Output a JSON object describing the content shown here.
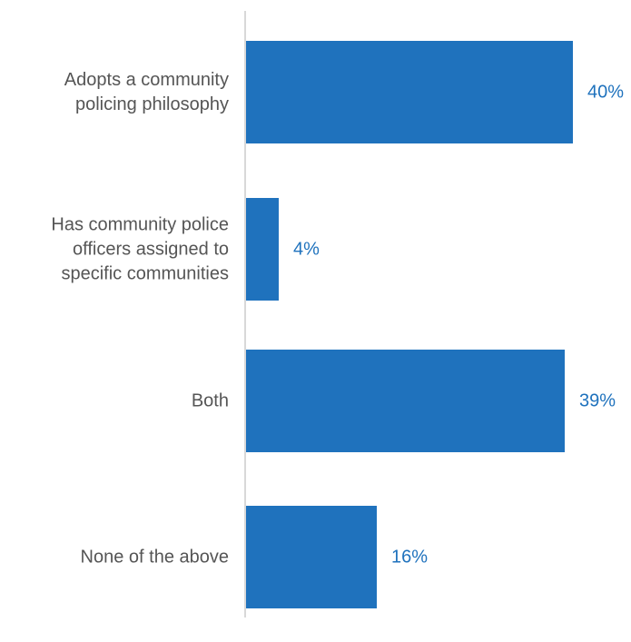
{
  "chart_data": {
    "type": "bar",
    "orientation": "horizontal",
    "categories": [
      "Adopts a community policing philosophy",
      "Has community police officers assigned to specific communities",
      "Both",
      "None of the above"
    ],
    "category_lines": [
      [
        "Adopts a community",
        "policing philosophy"
      ],
      [
        "Has community police",
        "officers assigned to",
        "specific communities"
      ],
      [
        "Both"
      ],
      [
        "None of the above"
      ]
    ],
    "values": [
      40,
      4,
      39,
      16
    ],
    "value_labels": [
      "40%",
      "4%",
      "39%",
      "16%"
    ],
    "unit": "%",
    "xlim": [
      0,
      40
    ],
    "grid": false,
    "legend": "none",
    "colors": {
      "bar": "#1f72bd",
      "value_label": "#1f72bd",
      "category_label": "#555555",
      "axis": "#cccccc"
    }
  }
}
